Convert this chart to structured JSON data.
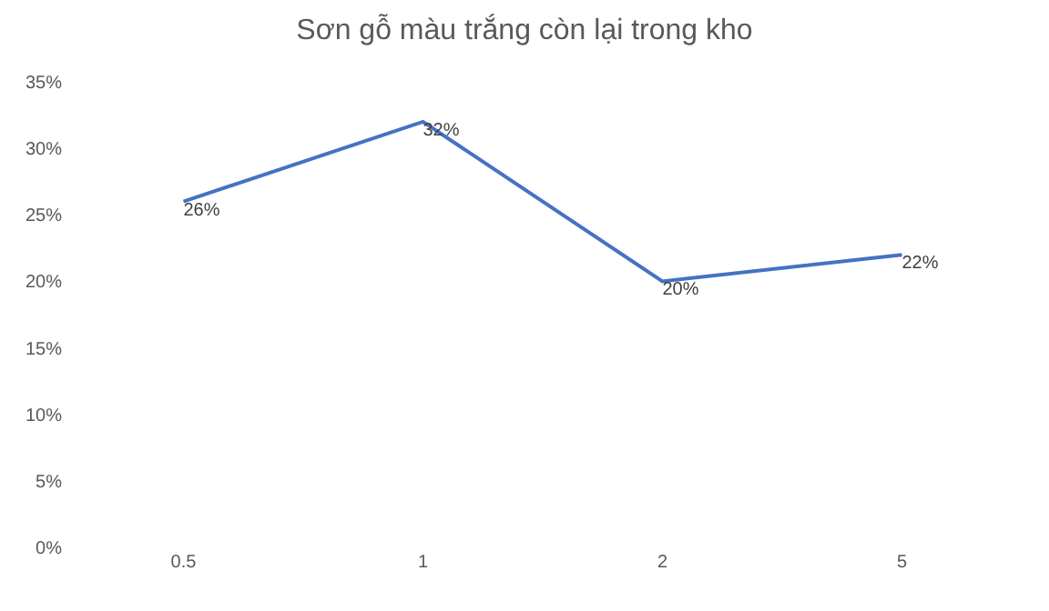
{
  "chart_data": {
    "type": "line",
    "title": "Sơn gỗ màu trắng còn lại trong kho",
    "categories": [
      "0.5",
      "1",
      "2",
      "5"
    ],
    "series": [
      {
        "color": "#4472c4",
        "values": [
          26,
          32,
          20,
          22
        ],
        "value_labels": [
          "26%",
          "32%",
          "20%",
          "22%"
        ]
      }
    ],
    "ylim": [
      0,
      35
    ],
    "yticks": [
      {
        "value": 0,
        "label": "0%"
      },
      {
        "value": 5,
        "label": "5%"
      },
      {
        "value": 10,
        "label": "10%"
      },
      {
        "value": 15,
        "label": "15%"
      },
      {
        "value": 20,
        "label": "20%"
      },
      {
        "value": 25,
        "label": "25%"
      },
      {
        "value": 30,
        "label": "30%"
      },
      {
        "value": 35,
        "label": "35%"
      }
    ],
    "grid": false,
    "marker": "none",
    "line_style": "solid"
  }
}
